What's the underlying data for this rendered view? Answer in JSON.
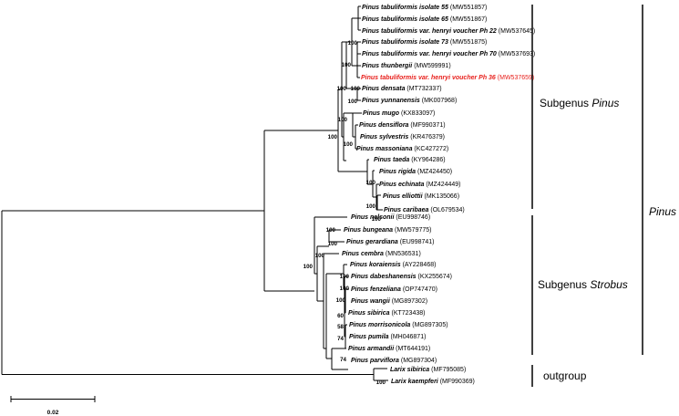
{
  "figure": {
    "type": "phylogenetic-tree",
    "tip_highlight_color": "#e8201c",
    "line_color": "#000000"
  },
  "taxa": [
    {
      "species": "Pinus tabuliformis",
      "rest": " isolate 55",
      "accession": "(MW551857)"
    },
    {
      "species": "Pinus tabuliformis",
      "rest": " isolate 65",
      "accession": "(MW551867)"
    },
    {
      "species": "Pinus tabuliformis var. henryi",
      "rest": " voucher Ph 22",
      "accession": "(MW537645)"
    },
    {
      "species": "Pinus tabuliformis",
      "rest": " isolate 73",
      "accession": "(MW551875)"
    },
    {
      "species": "Pinus tabuliformis var. henryi",
      "rest": " voucher Ph 70",
      "accession": "(MW537693)"
    },
    {
      "species": "Pinus thunbergii",
      "rest": "",
      "accession": "(MW599991)"
    },
    {
      "species": "Pinus tabuliformis var. henryi",
      "rest": " voucher Ph 36",
      "accession": "(MW537659)",
      "highlight": true
    },
    {
      "species": "Pinus densata",
      "rest": "",
      "accession": "(MT732337)"
    },
    {
      "species": "Pinus yunnanensis",
      "rest": "",
      "accession": "(MK007968)"
    },
    {
      "species": "Pinus mugo",
      "rest": "",
      "accession": "(KX833097)"
    },
    {
      "species": "Pinus densiflora",
      "rest": "",
      "accession": "(MF990371)"
    },
    {
      "species": "Pinus sylvestris",
      "rest": "",
      "accession": "(KR476379)"
    },
    {
      "species": "Pinus massoniana",
      "rest": "",
      "accession": "(KC427272)"
    },
    {
      "species": "Pinus taeda",
      "rest": "",
      "accession": "(KY964286)"
    },
    {
      "species": "Pinus rigida",
      "rest": "",
      "accession": "(MZ424450)"
    },
    {
      "species": "Pinus echinata",
      "rest": "",
      "accession": "(MZ424449)"
    },
    {
      "species": "Pinus elliottii",
      "rest": "",
      "accession": "(MK135066)"
    },
    {
      "species": "Pinus caribaea",
      "rest": "",
      "accession": "(OL679534)"
    },
    {
      "species": "Pinus nelsonii",
      "rest": "",
      "accession": "(EU998746)"
    },
    {
      "species": "Pinus bungeana",
      "rest": "",
      "accession": "(MW579775)"
    },
    {
      "species": "Pinus gerardiana",
      "rest": "",
      "accession": "(EU998741)"
    },
    {
      "species": "Pinus cembra",
      "rest": "",
      "accession": "(MN536531)"
    },
    {
      "species": "Pinus koraiensis",
      "rest": "",
      "accession": "(AY228468)"
    },
    {
      "species": "Pinus dabeshanensis",
      "rest": "",
      "accession": "(KX255674)"
    },
    {
      "species": "Pinus fenzeliana",
      "rest": "",
      "accession": "(OP747470)"
    },
    {
      "species": "Pinus wangii",
      "rest": "",
      "accession": "(MG897302)"
    },
    {
      "species": "Pinus sibirica",
      "rest": "",
      "accession": "(KT723438)"
    },
    {
      "species": "Pinus morrisonicola",
      "rest": "",
      "accession": "(MG897305)"
    },
    {
      "species": "Pinus pumila",
      "rest": "",
      "accession": "(MH046871)"
    },
    {
      "species": "Pinus armandii",
      "rest": "",
      "accession": "(MT644191)"
    },
    {
      "species": "Pinus parviflora",
      "rest": "",
      "accession": "(MG897304)"
    },
    {
      "species": "Larix sibirica",
      "rest": "",
      "accession": "(MF795085)"
    },
    {
      "species": "Larix kaempferi",
      "rest": "",
      "accession": "(MF990369)"
    }
  ],
  "support_values": [
    "100",
    "100",
    "100",
    "100",
    "100",
    "100",
    "100",
    "100",
    "100",
    "100",
    "100",
    "100",
    "100",
    "100",
    "100",
    "100",
    "100",
    "100",
    "60",
    "58",
    "74",
    "74",
    "100"
  ],
  "groups": {
    "subgenus_pinus": {
      "prefix": "Subgenus ",
      "name": "Pinus"
    },
    "subgenus_strobus": {
      "prefix": "Subgenus ",
      "name": "Strobus"
    },
    "outgroup": "outgroup",
    "genus": "Pinus"
  },
  "scale_bar": {
    "label": "0.02",
    "value": 0.02
  }
}
